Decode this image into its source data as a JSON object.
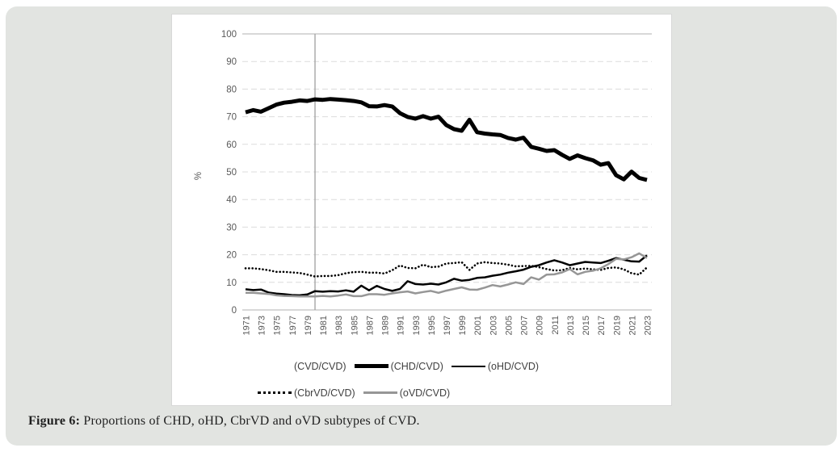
{
  "figure": {
    "caption_prefix": "Figure 6:",
    "caption_text": " Proportions of CHD, oHD, CbrVD and oVD subtypes of CVD."
  },
  "chart": {
    "ylabel": "%",
    "y_ticks": [
      0,
      10,
      20,
      30,
      40,
      50,
      60,
      70,
      80,
      90,
      100
    ],
    "x_tick_years": [
      1971,
      1973,
      1975,
      1977,
      1979,
      1981,
      1983,
      1985,
      1987,
      1989,
      1991,
      1993,
      1995,
      1997,
      1999,
      2001,
      2003,
      2005,
      2007,
      2009,
      2011,
      2013,
      2015,
      2017,
      2019,
      2021,
      2023
    ],
    "marker_line_year": 1980,
    "colors": {
      "grid": "#dcdcdc",
      "axis": "#c0c0c0",
      "marker_line": "#a6a6a6",
      "tick_text": "#595959",
      "series_black": "#000000",
      "series_gray": "#969696"
    },
    "legend": {
      "items": [
        {
          "label": "(CVD/CVD)"
        },
        {
          "label": "(CHD/CVD)"
        },
        {
          "label": "(oHD/CVD)"
        },
        {
          "label": "(CbrVD/CVD)"
        },
        {
          "label": "(oVD/CVD)"
        }
      ]
    }
  },
  "chart_data": {
    "type": "line",
    "title": "",
    "xlabel": "",
    "ylabel": "%",
    "ylim": [
      0,
      100
    ],
    "grid": true,
    "legend_position": "bottom",
    "x": [
      1971,
      1972,
      1973,
      1974,
      1975,
      1976,
      1977,
      1978,
      1979,
      1980,
      1981,
      1982,
      1983,
      1984,
      1985,
      1986,
      1987,
      1988,
      1989,
      1990,
      1991,
      1992,
      1993,
      1994,
      1995,
      1996,
      1997,
      1998,
      1999,
      2000,
      2001,
      2002,
      2003,
      2004,
      2005,
      2006,
      2007,
      2008,
      2009,
      2010,
      2011,
      2012,
      2013,
      2014,
      2015,
      2016,
      2017,
      2018,
      2019,
      2020,
      2021,
      2022,
      2023
    ],
    "series": [
      {
        "name": "(CVD/CVD)",
        "visible": false,
        "color": "#ffffff",
        "width": 1,
        "dash": "none",
        "values": [
          100,
          100,
          100,
          100,
          100,
          100,
          100,
          100,
          100,
          100,
          100,
          100,
          100,
          100,
          100,
          100,
          100,
          100,
          100,
          100,
          100,
          100,
          100,
          100,
          100,
          100,
          100,
          100,
          100,
          100,
          100,
          100,
          100,
          100,
          100,
          100,
          100,
          100,
          100,
          100,
          100,
          100,
          100,
          100,
          100,
          100,
          100,
          100,
          100,
          100,
          100,
          100,
          100
        ]
      },
      {
        "name": "(CHD/CVD)",
        "visible": true,
        "color": "#000000",
        "width": 5,
        "dash": "none",
        "values": [
          71.6,
          72.4,
          71.8,
          73.1,
          74.4,
          75.1,
          75.4,
          75.9,
          75.7,
          76.3,
          76.1,
          76.4,
          76.2,
          76.0,
          75.7,
          75.2,
          73.8,
          73.7,
          74.2,
          73.7,
          71.3,
          69.9,
          69.3,
          70.2,
          69.3,
          70.0,
          67.0,
          65.5,
          64.9,
          68.9,
          64.4,
          63.9,
          63.6,
          63.4,
          62.3,
          61.7,
          62.4,
          59.1,
          58.4,
          57.6,
          57.9,
          56.2,
          54.7,
          56.0,
          55.0,
          54.2,
          52.6,
          53.2,
          48.8,
          47.3,
          50.1,
          47.8,
          47.1
        ]
      },
      {
        "name": "(oHD/CVD)",
        "visible": true,
        "color": "#000000",
        "width": 2.5,
        "dash": "none",
        "values": [
          7.5,
          7.2,
          7.4,
          6.3,
          5.9,
          5.7,
          5.4,
          5.3,
          5.6,
          6.8,
          6.6,
          6.8,
          6.7,
          7.1,
          6.6,
          8.8,
          7.1,
          8.7,
          7.6,
          6.9,
          7.6,
          10.4,
          9.4,
          9.2,
          9.5,
          9.2,
          10.0,
          11.3,
          10.6,
          10.9,
          11.6,
          11.8,
          12.4,
          12.8,
          13.5,
          14.0,
          14.6,
          15.6,
          16.2,
          17.2,
          18.0,
          17.2,
          16.2,
          16.8,
          17.4,
          17.2,
          17.0,
          17.8,
          18.8,
          18.2,
          17.6,
          17.5,
          19.8
        ]
      },
      {
        "name": "(CbrVD/CVD)",
        "visible": true,
        "color": "#000000",
        "width": 2.6,
        "dash": "dot",
        "values": [
          15.1,
          15.1,
          14.8,
          14.4,
          13.8,
          13.8,
          13.6,
          13.4,
          12.8,
          12.1,
          12.3,
          12.3,
          12.6,
          13.3,
          13.7,
          13.8,
          13.5,
          13.5,
          13.2,
          14.4,
          16.1,
          15.2,
          15.1,
          16.4,
          15.5,
          15.7,
          16.8,
          17.0,
          17.3,
          14.5,
          16.8,
          17.3,
          17.0,
          16.8,
          16.4,
          15.8,
          15.9,
          16.0,
          15.5,
          14.8,
          14.3,
          14.4,
          15.2,
          14.7,
          15.0,
          14.7,
          14.5,
          15.2,
          15.4,
          14.7,
          13.3,
          12.8,
          15.4
        ]
      },
      {
        "name": "(oVD/CVD)",
        "visible": true,
        "color": "#969696",
        "width": 2.5,
        "dash": "none",
        "values": [
          6.2,
          6.2,
          6.0,
          5.8,
          5.3,
          5.1,
          5.0,
          4.9,
          4.9,
          4.9,
          5.1,
          4.9,
          5.2,
          5.6,
          5.0,
          5.0,
          5.7,
          5.7,
          5.5,
          6.0,
          6.4,
          6.7,
          6.0,
          6.5,
          6.9,
          6.2,
          7.0,
          7.6,
          8.2,
          7.4,
          7.3,
          8.1,
          9.0,
          8.5,
          9.2,
          10.0,
          9.4,
          11.8,
          11.0,
          12.8,
          12.9,
          13.6,
          14.8,
          12.9,
          13.8,
          14.2,
          15.1,
          16.6,
          18.5,
          18.3,
          19.1,
          20.5,
          18.8
        ]
      }
    ]
  }
}
